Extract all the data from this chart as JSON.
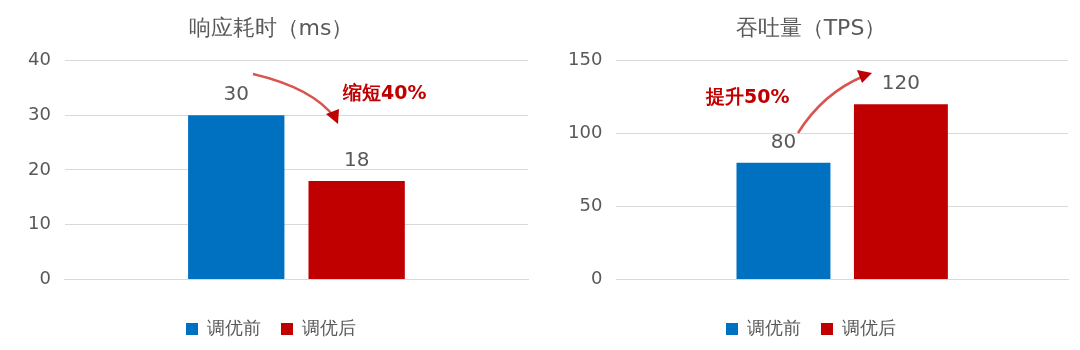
{
  "chart_data": [
    {
      "type": "bar",
      "title": "响应耗时（ms）",
      "categories": [
        null
      ],
      "series": [
        {
          "name": "调优前",
          "color": "#0070c0",
          "values": [
            30
          ]
        },
        {
          "name": "调优后",
          "color": "#c00000",
          "values": [
            18
          ]
        }
      ],
      "ylim": [
        0,
        40
      ],
      "yticks": [
        0,
        10,
        20,
        30,
        40
      ],
      "grid": "y",
      "legend": "bottom",
      "data_labels": true,
      "annotations": [
        "缩短40%"
      ]
    },
    {
      "type": "bar",
      "title": "吞吐量（TPS）",
      "categories": [
        null
      ],
      "series": [
        {
          "name": "调优前",
          "color": "#0070c0",
          "values": [
            80
          ]
        },
        {
          "name": "调优后",
          "color": "#c00000",
          "values": [
            120
          ]
        }
      ],
      "ylim": [
        0,
        150
      ],
      "yticks": [
        0,
        50,
        100,
        150
      ],
      "grid": "y",
      "legend": "bottom",
      "data_labels": true,
      "annotations": [
        "提升50%"
      ]
    }
  ]
}
